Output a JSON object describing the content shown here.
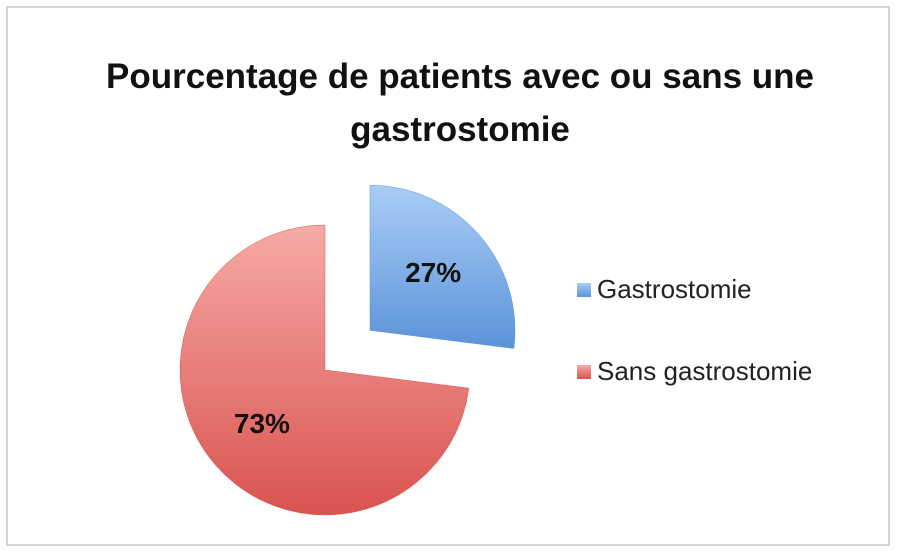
{
  "chart_data": {
    "type": "pie",
    "title": "Pourcentage de patients avec ou sans une gastrostomie",
    "categories": [
      "Gastrostomie",
      "Sans gastrostomie"
    ],
    "values": [
      27,
      73
    ],
    "value_labels": [
      "27%",
      "73%"
    ],
    "colors": [
      "#5b93d8",
      "#d9534f"
    ],
    "legend": "right"
  }
}
